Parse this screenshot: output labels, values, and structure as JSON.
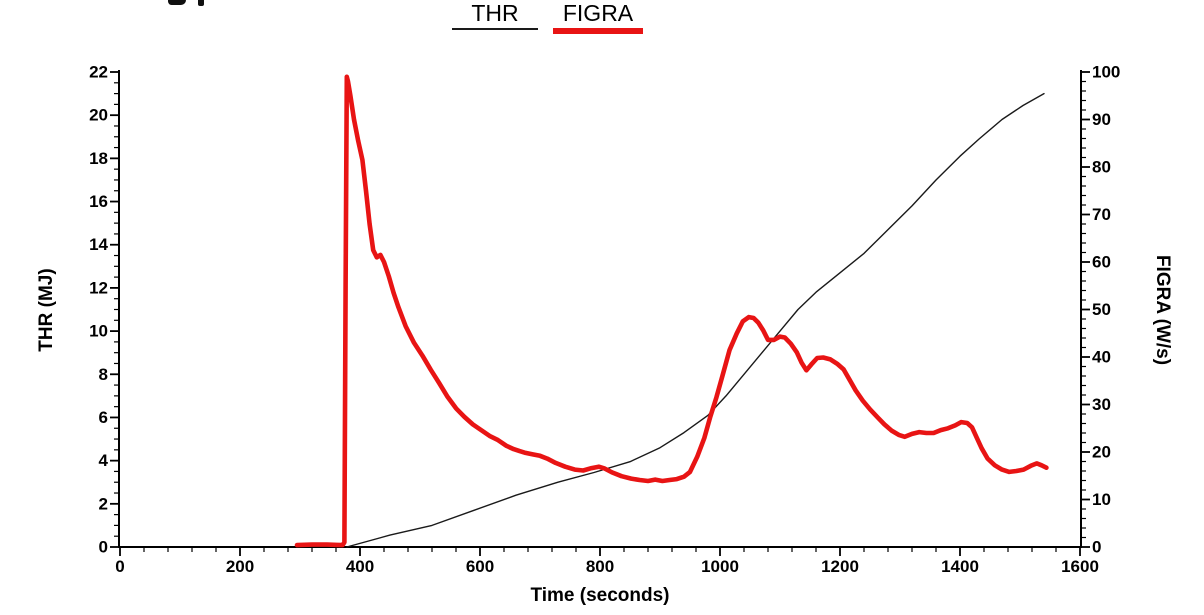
{
  "top_edge": {
    "cropped_text_fragment": "partially cropped title descenders"
  },
  "chart_data": {
    "type": "line",
    "title": "",
    "xlabel": "Time (seconds)",
    "ylabel_left": "THR (MJ)",
    "ylabel_right": "FIGRA (W/s)",
    "grid": false,
    "legend": {
      "position": "top-center",
      "items": [
        {
          "label": "THR",
          "color": "#1a1a1a",
          "line_width": 2
        },
        {
          "label": "FIGRA",
          "color": "#e81414",
          "line_width": 6
        }
      ]
    },
    "x_axis": {
      "min": 0,
      "max": 1600,
      "major_step": 200,
      "minor_step": 40,
      "tick_labels": [
        "0",
        "200",
        "400",
        "600",
        "800",
        "1000",
        "1200",
        "1400",
        "1600"
      ]
    },
    "y_left": {
      "min": 0,
      "max": 22,
      "major_step": 2,
      "minor_step": 0.5,
      "tick_labels": [
        "0",
        "2",
        "4",
        "6",
        "8",
        "10",
        "12",
        "14",
        "16",
        "18",
        "20",
        "22"
      ]
    },
    "y_right": {
      "min": 0,
      "max": 100,
      "major_step": 10,
      "minor_step": 2,
      "tick_labels": [
        "0",
        "10",
        "20",
        "30",
        "40",
        "50",
        "60",
        "70",
        "80",
        "90",
        "100"
      ]
    },
    "series": [
      {
        "name": "THR",
        "axis": "left",
        "color": "#1a1a1a",
        "width": 1.4,
        "points": [
          [
            378,
            0
          ],
          [
            450,
            0.55
          ],
          [
            520,
            1.0
          ],
          [
            590,
            1.7
          ],
          [
            660,
            2.4
          ],
          [
            730,
            3.0
          ],
          [
            790,
            3.45
          ],
          [
            850,
            3.95
          ],
          [
            900,
            4.6
          ],
          [
            940,
            5.3
          ],
          [
            980,
            6.1
          ],
          [
            1010,
            7.0
          ],
          [
            1040,
            8.0
          ],
          [
            1070,
            9.0
          ],
          [
            1100,
            10.0
          ],
          [
            1130,
            11.0
          ],
          [
            1160,
            11.8
          ],
          [
            1200,
            12.7
          ],
          [
            1240,
            13.6
          ],
          [
            1280,
            14.7
          ],
          [
            1320,
            15.8
          ],
          [
            1360,
            17.0
          ],
          [
            1400,
            18.1
          ],
          [
            1432,
            18.9
          ],
          [
            1470,
            19.8
          ],
          [
            1505,
            20.45
          ],
          [
            1540,
            21.0
          ]
        ]
      },
      {
        "name": "FIGRA",
        "axis": "right",
        "color": "#e81414",
        "width": 4.6,
        "points": [
          [
            295,
            0.4
          ],
          [
            320,
            0.5
          ],
          [
            345,
            0.5
          ],
          [
            362,
            0.45
          ],
          [
            371,
            0.4
          ],
          [
            374,
            1
          ],
          [
            376,
            55
          ],
          [
            378,
            99
          ],
          [
            380,
            98
          ],
          [
            384,
            95
          ],
          [
            390,
            90
          ],
          [
            397,
            85.5
          ],
          [
            404,
            81.5
          ],
          [
            410,
            75
          ],
          [
            416,
            68
          ],
          [
            422,
            62.5
          ],
          [
            428,
            61
          ],
          [
            434,
            61.5
          ],
          [
            440,
            60
          ],
          [
            448,
            57
          ],
          [
            456,
            53.5
          ],
          [
            464,
            50.5
          ],
          [
            476,
            46.5
          ],
          [
            490,
            43
          ],
          [
            504,
            40.3
          ],
          [
            518,
            37.3
          ],
          [
            532,
            34.5
          ],
          [
            546,
            31.6
          ],
          [
            560,
            29.2
          ],
          [
            574,
            27.4
          ],
          [
            588,
            25.8
          ],
          [
            602,
            24.6
          ],
          [
            616,
            23.4
          ],
          [
            630,
            22.5
          ],
          [
            644,
            21.3
          ],
          [
            656,
            20.6
          ],
          [
            666,
            20.2
          ],
          [
            676,
            19.8
          ],
          [
            688,
            19.5
          ],
          [
            700,
            19.2
          ],
          [
            712,
            18.6
          ],
          [
            726,
            17.7
          ],
          [
            742,
            16.9
          ],
          [
            758,
            16.3
          ],
          [
            772,
            16.1
          ],
          [
            786,
            16.6
          ],
          [
            798,
            16.9
          ],
          [
            808,
            16.5
          ],
          [
            820,
            15.7
          ],
          [
            836,
            14.9
          ],
          [
            852,
            14.4
          ],
          [
            866,
            14.1
          ],
          [
            880,
            13.9
          ],
          [
            892,
            14.2
          ],
          [
            904,
            13.9
          ],
          [
            916,
            14.1
          ],
          [
            928,
            14.3
          ],
          [
            940,
            14.8
          ],
          [
            950,
            15.8
          ],
          [
            962,
            19
          ],
          [
            974,
            23
          ],
          [
            984,
            27.5
          ],
          [
            994,
            31.5
          ],
          [
            1004,
            36
          ],
          [
            1016,
            41.5
          ],
          [
            1028,
            45
          ],
          [
            1038,
            47.5
          ],
          [
            1048,
            48.4
          ],
          [
            1056,
            48.2
          ],
          [
            1064,
            47.2
          ],
          [
            1072,
            45.6
          ],
          [
            1080,
            43.6
          ],
          [
            1090,
            43.6
          ],
          [
            1100,
            44.3
          ],
          [
            1108,
            44.1
          ],
          [
            1118,
            42.8
          ],
          [
            1128,
            41
          ],
          [
            1136,
            38.8
          ],
          [
            1144,
            37.2
          ],
          [
            1152,
            38.4
          ],
          [
            1162,
            39.8
          ],
          [
            1172,
            39.9
          ],
          [
            1184,
            39.5
          ],
          [
            1196,
            38.5
          ],
          [
            1206,
            37.4
          ],
          [
            1216,
            35.2
          ],
          [
            1226,
            33
          ],
          [
            1238,
            30.8
          ],
          [
            1250,
            29
          ],
          [
            1262,
            27.4
          ],
          [
            1274,
            25.8
          ],
          [
            1286,
            24.5
          ],
          [
            1298,
            23.6
          ],
          [
            1308,
            23.2
          ],
          [
            1320,
            23.8
          ],
          [
            1332,
            24.2
          ],
          [
            1344,
            24
          ],
          [
            1356,
            24
          ],
          [
            1368,
            24.6
          ],
          [
            1380,
            25
          ],
          [
            1392,
            25.6
          ],
          [
            1402,
            26.3
          ],
          [
            1412,
            26.1
          ],
          [
            1420,
            25.2
          ],
          [
            1428,
            23
          ],
          [
            1436,
            20.8
          ],
          [
            1446,
            18.6
          ],
          [
            1458,
            17.2
          ],
          [
            1470,
            16.3
          ],
          [
            1482,
            15.8
          ],
          [
            1494,
            16
          ],
          [
            1506,
            16.3
          ],
          [
            1518,
            17.1
          ],
          [
            1528,
            17.6
          ],
          [
            1536,
            17.2
          ],
          [
            1544,
            16.7
          ]
        ]
      }
    ]
  }
}
